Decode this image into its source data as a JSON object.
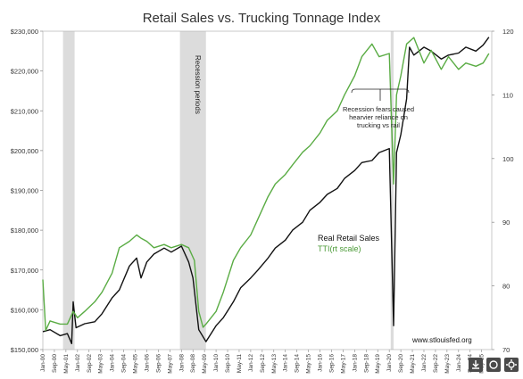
{
  "chart_data": {
    "type": "line",
    "title": "Retail Sales vs. Trucking Tonnage Index",
    "x_ticks": [
      "Jan-00",
      "Sep-00",
      "May-01",
      "Jan-02",
      "Sep-02",
      "May-03",
      "Jan-04",
      "Sep-04",
      "May-05",
      "Jan-06",
      "Sep-06",
      "May-07",
      "Jan-08",
      "Sep-08",
      "May-09",
      "Jan-10",
      "Sep-10",
      "May-11",
      "Jan-12",
      "Sep-12",
      "May-13",
      "Jan-14",
      "Sep-14",
      "May-15",
      "Jan-16",
      "Sep-16",
      "May-17",
      "Jan-18",
      "Sep-18",
      "May-19",
      "Jan-20",
      "Sep-20",
      "May-21",
      "Jan-22",
      "Sep-22",
      "May-23",
      "Jan-24",
      "Sep-24",
      "May-25"
    ],
    "y_left_ticks": [
      "$150,000",
      "$160,000",
      "$170,000",
      "$180,000",
      "$190,000",
      "$200,000",
      "$210,000",
      "$220,000",
      "$230,000"
    ],
    "y_left_range": [
      150000,
      230000
    ],
    "y_right_ticks": [
      "70",
      "80",
      "90",
      "100",
      "110",
      "120"
    ],
    "y_right_range": [
      70,
      120
    ],
    "x_range": [
      "2000-01",
      "2025-12"
    ],
    "grid": false,
    "recessions": [
      {
        "start": "2001-03",
        "end": "2001-11"
      },
      {
        "start": "2007-12",
        "end": "2009-06"
      },
      {
        "start": "2020-02",
        "end": "2020-04"
      }
    ],
    "series": [
      {
        "name": "Real Retail Sales",
        "axis": "left",
        "color": "#111111",
        "x": [
          "2000-01",
          "2000-06",
          "2001-01",
          "2001-06",
          "2001-09",
          "2001-10",
          "2001-12",
          "2002-06",
          "2003-01",
          "2003-06",
          "2004-01",
          "2004-06",
          "2005-01",
          "2005-06",
          "2005-09",
          "2006-01",
          "2006-06",
          "2007-01",
          "2007-06",
          "2008-01",
          "2008-06",
          "2008-09",
          "2009-01",
          "2009-06",
          "2010-01",
          "2010-06",
          "2011-01",
          "2011-06",
          "2012-01",
          "2012-06",
          "2013-01",
          "2013-06",
          "2014-01",
          "2014-06",
          "2015-01",
          "2015-06",
          "2016-01",
          "2016-06",
          "2017-01",
          "2017-06",
          "2018-01",
          "2018-06",
          "2019-01",
          "2019-06",
          "2020-01",
          "2020-04",
          "2020-06",
          "2020-09",
          "2021-01",
          "2021-03",
          "2021-06",
          "2022-01",
          "2022-06",
          "2023-01",
          "2023-06",
          "2024-01",
          "2024-06",
          "2025-01",
          "2025-06",
          "2025-10"
        ],
        "y": [
          154500,
          155000,
          153500,
          154000,
          151500,
          162000,
          155500,
          156500,
          157000,
          159000,
          163000,
          165000,
          171000,
          173000,
          168000,
          172000,
          174000,
          175500,
          174500,
          176000,
          172000,
          168000,
          155000,
          152000,
          156000,
          158000,
          162000,
          165500,
          168000,
          170000,
          173000,
          175500,
          177500,
          180000,
          182000,
          185000,
          187000,
          189000,
          190500,
          193000,
          195000,
          197000,
          197500,
          199500,
          200500,
          156000,
          199500,
          204000,
          213000,
          226000,
          224000,
          226000,
          225000,
          223000,
          224000,
          224500,
          226000,
          225000,
          226500,
          228500
        ]
      },
      {
        "name": "TTI(rt scale)",
        "axis": "right",
        "color": "#5aac44",
        "x": [
          "2000-01",
          "2000-03",
          "2000-06",
          "2001-01",
          "2001-06",
          "2001-10",
          "2002-01",
          "2002-06",
          "2003-01",
          "2003-06",
          "2004-01",
          "2004-06",
          "2005-01",
          "2005-06",
          "2005-09",
          "2006-01",
          "2006-06",
          "2007-01",
          "2007-06",
          "2008-01",
          "2008-06",
          "2008-10",
          "2009-01",
          "2009-04",
          "2009-06",
          "2010-01",
          "2010-06",
          "2011-01",
          "2011-06",
          "2012-01",
          "2012-06",
          "2013-01",
          "2013-06",
          "2014-01",
          "2014-06",
          "2015-01",
          "2015-06",
          "2016-01",
          "2016-06",
          "2017-01",
          "2017-06",
          "2018-01",
          "2018-06",
          "2019-01",
          "2019-06",
          "2020-01",
          "2020-04",
          "2020-06",
          "2020-09",
          "2021-01",
          "2021-06",
          "2022-01",
          "2022-06",
          "2023-01",
          "2023-06",
          "2024-01",
          "2024-06",
          "2025-01",
          "2025-06",
          "2025-10"
        ],
        "y": [
          81,
          73,
          74.5,
          74,
          74,
          76,
          75,
          76,
          77.5,
          79,
          82,
          86,
          87,
          88,
          87.5,
          87,
          86,
          86.5,
          86,
          86.5,
          86,
          84,
          76,
          73.5,
          74,
          76,
          79,
          84,
          86,
          88,
          90.5,
          94,
          96,
          97.5,
          99,
          101,
          102,
          104,
          106,
          107.5,
          110,
          113,
          116,
          118,
          116,
          116.5,
          96,
          110,
          113,
          118,
          119,
          115,
          117,
          114,
          116,
          114,
          115,
          114.5,
          115,
          116.5
        ]
      }
    ],
    "annotations": {
      "recession_label": "Recession periods",
      "bracket_note_lines": [
        "Recession fears caused",
        "hearvier reliance on",
        "trucking vs rail"
      ],
      "source": "www.stlouisfed.org",
      "legend_retail": "Real Retail Sales",
      "legend_tti": "TTI(rt scale)"
    },
    "toolbar_icons": [
      "download-icon",
      "share-icon",
      "settings-icon"
    ]
  }
}
